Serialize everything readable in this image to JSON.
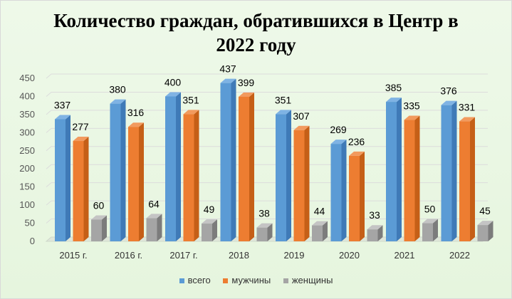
{
  "chart_data": {
    "type": "bar",
    "title_line1": "Количество граждан, обратившихся в Центр в",
    "title_line2": "2022 году",
    "categories": [
      "2015 г.",
      "2016 г.",
      "2017 г.",
      "2018",
      "2019",
      "2020",
      "2021",
      "2022"
    ],
    "series": [
      {
        "name": "всего",
        "values": [
          337,
          380,
          400,
          437,
          351,
          269,
          385,
          376
        ],
        "color": "#5b9bd5",
        "side": "#3f7ab7",
        "top": "#7fb3e4"
      },
      {
        "name": "мужчины",
        "values": [
          277,
          316,
          351,
          399,
          307,
          236,
          335,
          331
        ],
        "color": "#ed7d31",
        "side": "#c55f17",
        "top": "#f29a5e"
      },
      {
        "name": "женщины",
        "values": [
          60,
          64,
          49,
          38,
          44,
          33,
          50,
          45
        ],
        "color": "#a5a5a5",
        "side": "#7c7c7c",
        "top": "#c4c4c4"
      }
    ],
    "ylim": [
      0,
      450
    ],
    "yticks": [
      "0",
      "50",
      "100",
      "150",
      "200",
      "250",
      "300",
      "350",
      "400",
      "450"
    ],
    "grid": true,
    "legend_position": "bottom",
    "style": "3d-clustered-column"
  }
}
